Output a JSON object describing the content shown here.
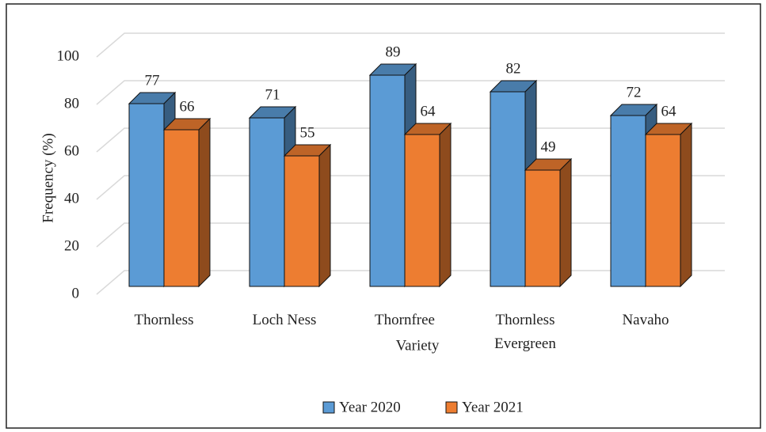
{
  "chart_data": {
    "type": "bar3d",
    "x_label": "Variety",
    "y_label": "Frequency (%)",
    "categories": [
      "Thornless",
      "Loch Ness",
      "Thornfree",
      "Thornless Evergreen",
      "Navaho"
    ],
    "series": [
      {
        "name": "Year 2020",
        "color": "#5b9bd5",
        "values": [
          77,
          71,
          89,
          82,
          72
        ]
      },
      {
        "name": "Year 2021",
        "color": "#ed7d31",
        "values": [
          66,
          55,
          64,
          49,
          64
        ]
      }
    ],
    "ylim": [
      0,
      100
    ],
    "yticks": [
      0,
      20,
      40,
      60,
      80,
      100
    ],
    "grid": true,
    "legend": "bottom"
  }
}
